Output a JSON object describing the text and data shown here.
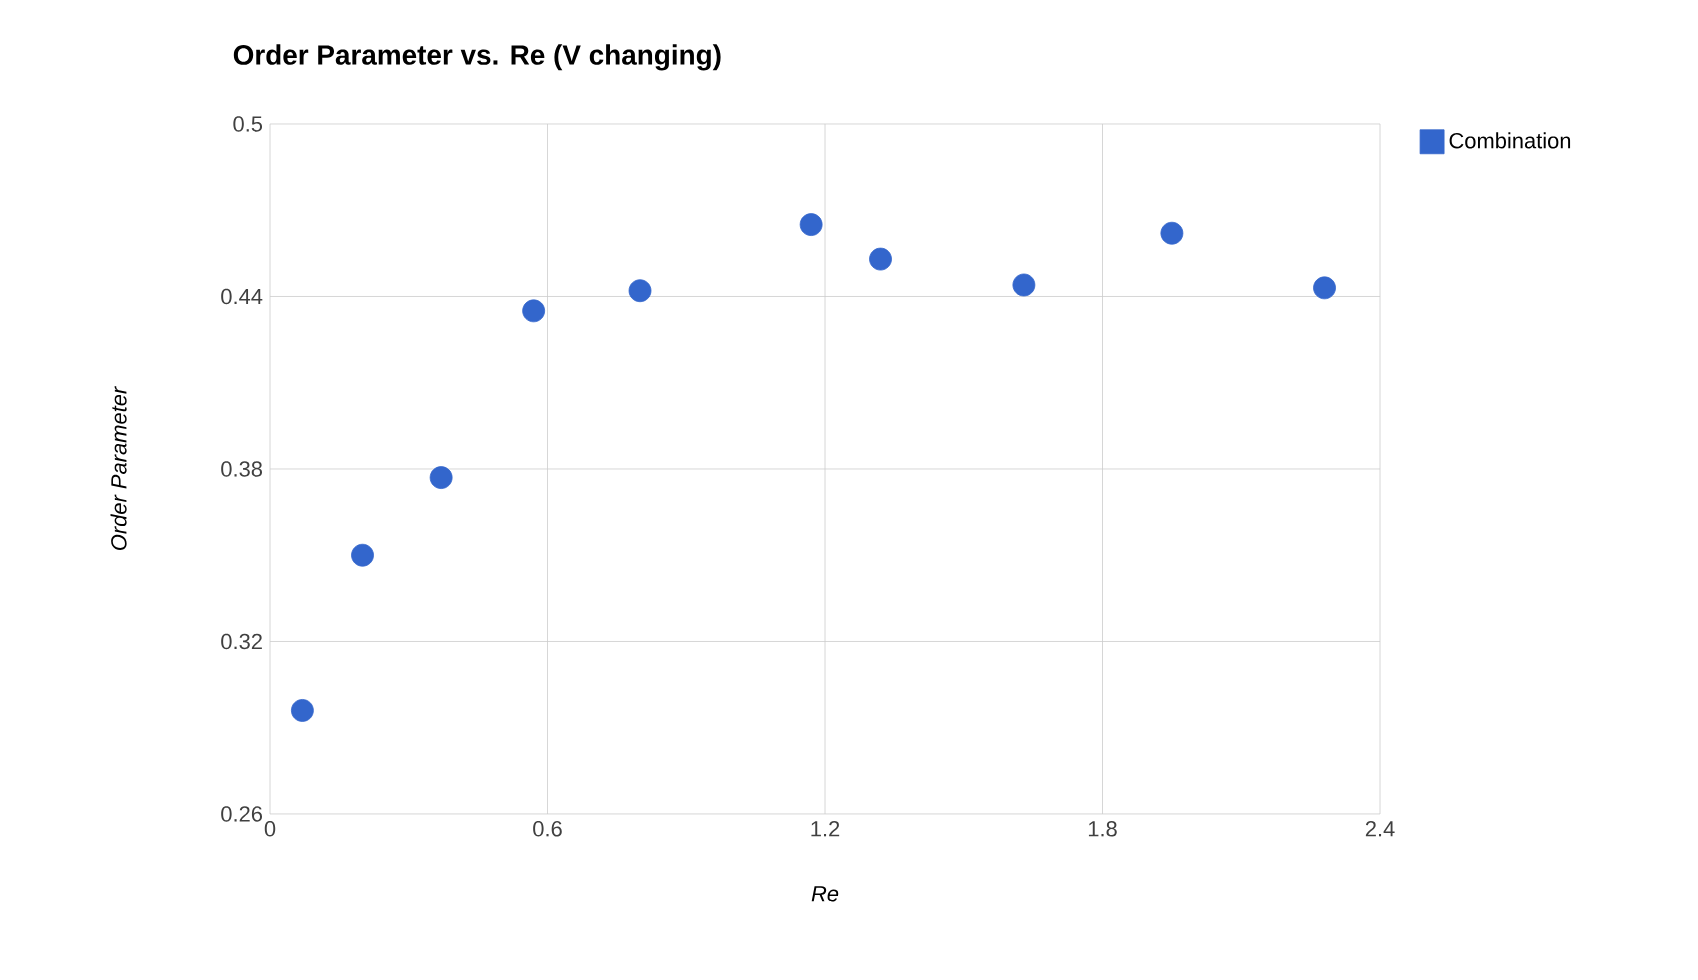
{
  "chart_data": {
    "type": "scatter",
    "title": "Order Parameter vs. Re (V changing)",
    "xlabel": "Re",
    "ylabel": "Order Parameter",
    "x": [
      0.07,
      0.2,
      0.37,
      0.57,
      0.8,
      1.17,
      1.32,
      1.63,
      1.95,
      2.28
    ],
    "series": [
      {
        "name": "Combination",
        "color": "#3366cc",
        "values": [
          0.296,
          0.35,
          0.377,
          0.435,
          0.442,
          0.465,
          0.453,
          0.444,
          0.462,
          0.443
        ]
      }
    ],
    "xlim": [
      0,
      2.4
    ],
    "xticks": [
      0,
      0.6,
      1.2,
      1.8,
      2.4
    ],
    "ylim": [
      0.26,
      0.5
    ],
    "yticks": [
      0.26,
      0.32,
      0.38,
      0.44,
      0.5
    ],
    "grid": true,
    "legend": "top right",
    "marker": "circle"
  }
}
